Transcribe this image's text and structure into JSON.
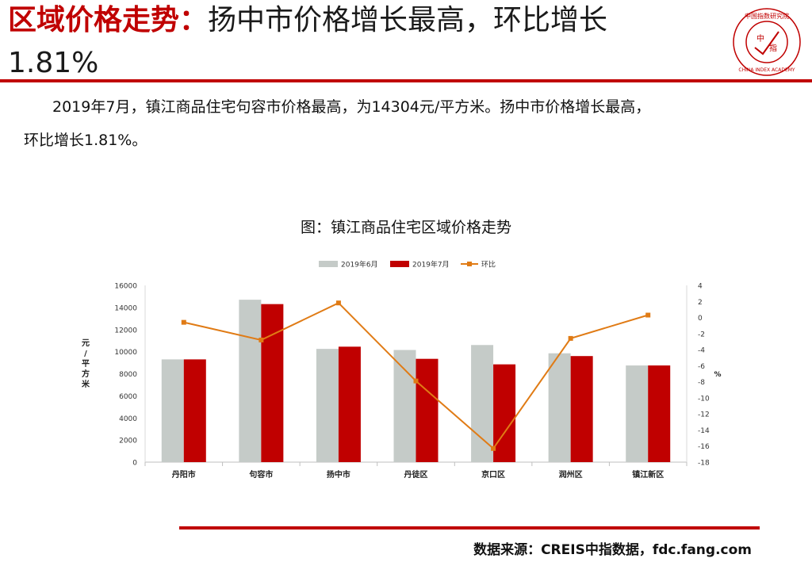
{
  "header": {
    "title_red": "区域价格走势：",
    "title_black": "扬中市价格增长最高，环比增长",
    "title_line2": "1.81%"
  },
  "logo": {
    "text_top": "中国指数研究院",
    "text_center_1": "中",
    "text_center_2": "指",
    "text_bottom": "CHINA INDEX ACADEMY",
    "color": "#c00000"
  },
  "summary": {
    "line1": "2019年7月，镇江商品住宅句容市价格最高，为14304元/平方米。扬中市价格增长最高，",
    "line2": "环比增长1.81%。"
  },
  "chart_data": {
    "type": "bar",
    "title": "图：镇江商品住宅区域价格走势",
    "categories": [
      "丹阳市",
      "句容市",
      "扬中市",
      "丹徒区",
      "京口区",
      "润州区",
      "镇江新区"
    ],
    "series": [
      {
        "name": "2019年6月",
        "type": "bar",
        "axis": "left",
        "color": "#c5cbc8",
        "values": [
          9300,
          14700,
          10250,
          10150,
          10600,
          9850,
          8750
        ]
      },
      {
        "name": "2019年7月",
        "type": "bar",
        "axis": "left",
        "color": "#c00000",
        "values": [
          9300,
          14304,
          10450,
          9350,
          8850,
          9600,
          8750
        ]
      },
      {
        "name": "环比",
        "type": "line",
        "axis": "right",
        "color": "#e07b15",
        "values": [
          -0.6,
          -2.8,
          1.81,
          -7.9,
          -16.3,
          -2.6,
          0.3
        ]
      }
    ],
    "ylabel_left": "元/平方米",
    "ylabel_right": "%",
    "ylim_left": [
      0,
      16000
    ],
    "yticks_left": [
      "0",
      "2000",
      "4000",
      "6000",
      "8000",
      "10000",
      "12000",
      "14000",
      "16000"
    ],
    "ylim_right": [
      -18,
      4
    ],
    "yticks_right": [
      "-18",
      "-16",
      "-14",
      "-12",
      "-10",
      "-8",
      "-6",
      "-4",
      "-2",
      "0",
      "2",
      "4"
    ],
    "legend_position": "top",
    "grid": false
  },
  "footer": {
    "source": "数据来源：CREIS中指数据，fdc.fang.com"
  }
}
